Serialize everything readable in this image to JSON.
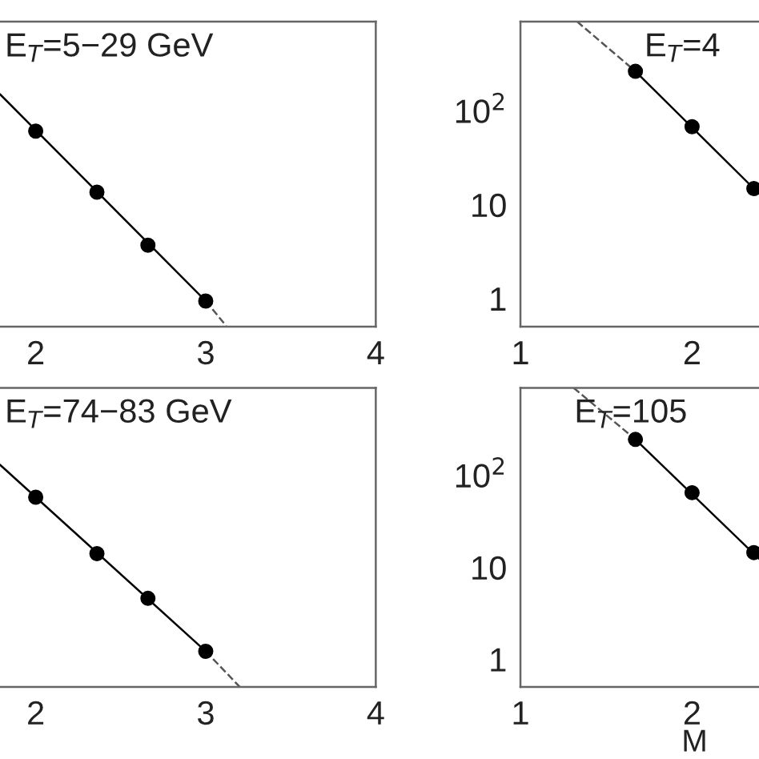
{
  "chart_data": [
    {
      "type": "scatter",
      "title": "E$_{T}$=5−29 GeV",
      "log": "y",
      "xlim": [
        1.79,
        4
      ],
      "ylim": [
        0.5,
        900
      ],
      "xticks": [
        2,
        3,
        4
      ],
      "tick_labels": "x",
      "grid": false,
      "legend": false,
      "series": [
        {
          "type": "scatter",
          "color": "#000000",
          "marker": "circle",
          "x": [
            2.0,
            2.36,
            2.66,
            3.0
          ],
          "values": [
            61,
            13.6,
            3.7,
            0.94
          ]
        },
        {
          "type": "line",
          "color": "#000000",
          "line_style": "solid",
          "marker": "none",
          "x": [
            1.79,
            3.0
          ],
          "values": [
            151,
            0.94
          ]
        },
        {
          "type": "line",
          "color": "#555555",
          "line_style": "dashed",
          "marker": "none",
          "x": [
            3.0,
            3.12
          ],
          "values": [
            0.94,
            0.51
          ]
        }
      ]
    },
    {
      "type": "scatter",
      "title": "E$_{T}$=4",
      "log": "y",
      "xlim": [
        1,
        2.39
      ],
      "ylim": [
        0.5,
        900
      ],
      "xticks": [
        1,
        2
      ],
      "yticks": [
        1,
        10,
        {
          "value": 100,
          "label": "10$^{2}$"
        }
      ],
      "grid": false,
      "legend": false,
      "series": [
        {
          "type": "scatter",
          "color": "#000000",
          "marker": "circle",
          "x": [
            1.67,
            2.0,
            2.36
          ],
          "values": [
            265,
            68,
            14.9
          ]
        },
        {
          "type": "line",
          "color": "#000000",
          "line_style": "solid",
          "marker": "none",
          "x": [
            1.67,
            2.39
          ],
          "values": [
            265,
            13.1
          ]
        },
        {
          "type": "line",
          "color": "#555555",
          "line_style": "dashed",
          "marker": "none",
          "x": [
            1.33,
            1.67
          ],
          "values": [
            900,
            265
          ]
        }
      ]
    },
    {
      "type": "scatter",
      "title": "E$_{T}$=74−83 GeV",
      "log": "y",
      "xlim": [
        1.79,
        4
      ],
      "ylim": [
        0.5,
        900
      ],
      "xticks": [
        2,
        3,
        4
      ],
      "tick_labels": "x",
      "grid": false,
      "legend": false,
      "series": [
        {
          "type": "scatter",
          "color": "#000000",
          "marker": "circle",
          "x": [
            2.0,
            2.36,
            2.66,
            3.0
          ],
          "values": [
            58,
            14.1,
            4.6,
            1.22
          ]
        },
        {
          "type": "line",
          "color": "#000000",
          "line_style": "solid",
          "marker": "none",
          "x": [
            1.79,
            3.0
          ],
          "values": [
            131,
            1.22
          ]
        },
        {
          "type": "line",
          "color": "#555555",
          "line_style": "dashed",
          "marker": "none",
          "x": [
            3.0,
            3.2
          ],
          "values": [
            1.22,
            0.5
          ]
        }
      ]
    },
    {
      "type": "scatter",
      "title": "E$_{T}$=105",
      "xlabel": "M",
      "log": "y",
      "xlim": [
        1,
        2.39
      ],
      "ylim": [
        0.5,
        900
      ],
      "xticks": [
        1,
        2
      ],
      "yticks": [
        1,
        10,
        {
          "value": 100,
          "label": "10$^{2}$"
        }
      ],
      "grid": false,
      "legend": false,
      "series": [
        {
          "type": "scatter",
          "color": "#000000",
          "marker": "circle",
          "x": [
            1.67,
            2.0,
            2.36
          ],
          "values": [
            247,
            65,
            14.5
          ]
        },
        {
          "type": "line",
          "color": "#000000",
          "line_style": "solid",
          "marker": "none",
          "x": [
            1.67,
            2.39
          ],
          "values": [
            247,
            12.4
          ]
        },
        {
          "type": "line",
          "color": "#555555",
          "line_style": "dashed",
          "marker": "none",
          "x": [
            1.31,
            1.67
          ],
          "values": [
            900,
            247
          ]
        }
      ]
    }
  ]
}
